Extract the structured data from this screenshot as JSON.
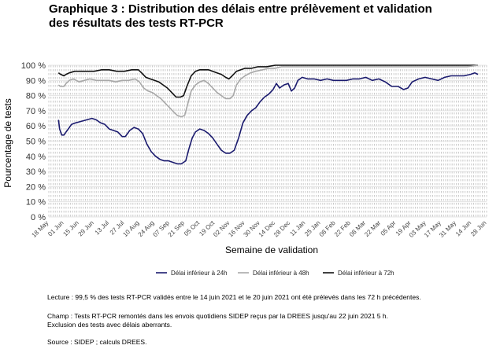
{
  "title_lines": [
    "Graphique 3 : Distribution des délais entre prélèvement et validation",
    "des résultats des tests RT-PCR"
  ],
  "chart_data": {
    "type": "line",
    "title": "Graphique 3 : Distribution des délais entre prélèvement et validation des résultats des tests RT-PCR",
    "xlabel": "Semaine de validation",
    "ylabel": "Pourcentage de tests",
    "xlim": [
      "2020-05-18",
      "2021-06-28"
    ],
    "ylim": [
      0,
      100
    ],
    "y_ticks": [
      0,
      10,
      20,
      30,
      40,
      50,
      60,
      70,
      80,
      90,
      100
    ],
    "y_tick_labels": [
      "0 %",
      "10 %",
      "20 %",
      "30 %",
      "40 %",
      "50 %",
      "60 %",
      "70 %",
      "80 %",
      "90 %",
      "100 %"
    ],
    "x_ticks": [
      "2020-05-18",
      "2020-06-01",
      "2020-06-15",
      "2020-06-29",
      "2020-07-13",
      "2020-07-27",
      "2020-08-10",
      "2020-08-24",
      "2020-09-07",
      "2020-09-21",
      "2020-10-05",
      "2020-10-19",
      "2020-11-02",
      "2020-11-16",
      "2020-11-30",
      "2020-12-14",
      "2020-12-28",
      "2021-01-11",
      "2021-01-25",
      "2021-02-08",
      "2021-02-22",
      "2021-03-08",
      "2021-03-22",
      "2021-04-05",
      "2021-04-19",
      "2021-05-03",
      "2021-05-17",
      "2021-05-31",
      "2021-06-14",
      "2021-06-28"
    ],
    "x_tick_labels": [
      "18 May",
      "01 Jun",
      "15 Jun",
      "29 Jun",
      "13 Jul",
      "27 Jul",
      "10 Aug",
      "24 Aug",
      "07 Sep",
      "21 Sep",
      "05 Oct",
      "19 Oct",
      "02 Nov",
      "16 Nov",
      "30 Nov",
      "14 Dec",
      "28 Dec",
      "11 Jan",
      "25 Jan",
      "08 Feb",
      "22 Feb",
      "08 Mar",
      "22 Mar",
      "05 Apr",
      "19 Apr",
      "03 May",
      "17 May",
      "31 May",
      "14 Jun",
      "28 Jun"
    ],
    "grid": "dashed vertical gridlines every 2 days, solid horizontal gridlines",
    "legend_position": "bottom",
    "series": [
      {
        "name": "Délai inférieur à 24h",
        "color": "#1a1a6e",
        "points": [
          [
            "2020-05-27",
            64
          ],
          [
            "2020-05-28",
            58
          ],
          [
            "2020-05-30",
            54
          ],
          [
            "2020-06-01",
            54
          ],
          [
            "2020-06-03",
            56
          ],
          [
            "2020-06-05",
            58
          ],
          [
            "2020-06-08",
            61
          ],
          [
            "2020-06-12",
            62
          ],
          [
            "2020-06-17",
            63
          ],
          [
            "2020-06-22",
            64
          ],
          [
            "2020-06-27",
            65
          ],
          [
            "2020-07-01",
            64
          ],
          [
            "2020-07-05",
            62
          ],
          [
            "2020-07-09",
            61
          ],
          [
            "2020-07-13",
            58
          ],
          [
            "2020-07-17",
            57
          ],
          [
            "2020-07-21",
            56
          ],
          [
            "2020-07-25",
            53
          ],
          [
            "2020-07-28",
            53
          ],
          [
            "2020-08-01",
            57
          ],
          [
            "2020-08-05",
            59
          ],
          [
            "2020-08-09",
            58
          ],
          [
            "2020-08-13",
            55
          ],
          [
            "2020-08-17",
            48
          ],
          [
            "2020-08-21",
            43
          ],
          [
            "2020-08-25",
            40
          ],
          [
            "2020-08-29",
            38
          ],
          [
            "2020-09-02",
            37
          ],
          [
            "2020-09-06",
            37
          ],
          [
            "2020-09-10",
            36
          ],
          [
            "2020-09-14",
            35
          ],
          [
            "2020-09-18",
            35
          ],
          [
            "2020-09-22",
            37
          ],
          [
            "2020-09-25",
            45
          ],
          [
            "2020-09-28",
            52
          ],
          [
            "2020-10-01",
            56
          ],
          [
            "2020-10-05",
            58
          ],
          [
            "2020-10-09",
            57
          ],
          [
            "2020-10-13",
            55
          ],
          [
            "2020-10-17",
            52
          ],
          [
            "2020-10-21",
            48
          ],
          [
            "2020-10-25",
            44
          ],
          [
            "2020-10-29",
            42
          ],
          [
            "2020-11-02",
            42
          ],
          [
            "2020-11-06",
            44
          ],
          [
            "2020-11-10",
            52
          ],
          [
            "2020-11-14",
            62
          ],
          [
            "2020-11-18",
            67
          ],
          [
            "2020-11-22",
            70
          ],
          [
            "2020-11-26",
            72
          ],
          [
            "2020-11-30",
            76
          ],
          [
            "2020-12-04",
            79
          ],
          [
            "2020-12-08",
            81
          ],
          [
            "2020-12-12",
            84
          ],
          [
            "2020-12-15",
            88
          ],
          [
            "2020-12-18",
            85
          ],
          [
            "2020-12-22",
            87
          ],
          [
            "2020-12-26",
            88
          ],
          [
            "2020-12-29",
            83
          ],
          [
            "2021-01-01",
            85
          ],
          [
            "2021-01-04",
            90
          ],
          [
            "2021-01-08",
            92
          ],
          [
            "2021-01-13",
            91
          ],
          [
            "2021-01-19",
            91
          ],
          [
            "2021-01-25",
            90
          ],
          [
            "2021-01-31",
            91
          ],
          [
            "2021-02-06",
            90
          ],
          [
            "2021-02-12",
            90
          ],
          [
            "2021-02-18",
            90
          ],
          [
            "2021-02-24",
            91
          ],
          [
            "2021-03-02",
            91
          ],
          [
            "2021-03-08",
            92
          ],
          [
            "2021-03-14",
            90
          ],
          [
            "2021-03-20",
            91
          ],
          [
            "2021-03-26",
            89
          ],
          [
            "2021-04-01",
            86
          ],
          [
            "2021-04-07",
            86
          ],
          [
            "2021-04-12",
            84
          ],
          [
            "2021-04-16",
            85
          ],
          [
            "2021-04-20",
            89
          ],
          [
            "2021-04-26",
            91
          ],
          [
            "2021-05-02",
            92
          ],
          [
            "2021-05-08",
            91
          ],
          [
            "2021-05-14",
            90
          ],
          [
            "2021-05-20",
            92
          ],
          [
            "2021-05-26",
            93
          ],
          [
            "2021-06-01",
            93
          ],
          [
            "2021-06-07",
            93
          ],
          [
            "2021-06-13",
            94
          ],
          [
            "2021-06-17",
            95
          ],
          [
            "2021-06-20",
            94
          ]
        ]
      },
      {
        "name": "Délai inférieur à 48h",
        "color": "#a8a8a8",
        "points": [
          [
            "2020-05-27",
            87
          ],
          [
            "2020-05-29",
            86
          ],
          [
            "2020-06-01",
            86
          ],
          [
            "2020-06-03",
            88
          ],
          [
            "2020-06-06",
            90
          ],
          [
            "2020-06-10",
            91
          ],
          [
            "2020-06-15",
            89
          ],
          [
            "2020-06-20",
            90
          ],
          [
            "2020-06-25",
            91
          ],
          [
            "2020-07-01",
            90
          ],
          [
            "2020-07-07",
            90
          ],
          [
            "2020-07-13",
            90
          ],
          [
            "2020-07-19",
            89
          ],
          [
            "2020-07-25",
            90
          ],
          [
            "2020-07-31",
            90
          ],
          [
            "2020-08-06",
            91
          ],
          [
            "2020-08-10",
            89
          ],
          [
            "2020-08-14",
            85
          ],
          [
            "2020-08-18",
            83
          ],
          [
            "2020-08-22",
            82
          ],
          [
            "2020-08-26",
            80
          ],
          [
            "2020-08-30",
            78
          ],
          [
            "2020-09-03",
            75
          ],
          [
            "2020-09-07",
            72
          ],
          [
            "2020-09-11",
            69
          ],
          [
            "2020-09-14",
            67
          ],
          [
            "2020-09-18",
            66
          ],
          [
            "2020-09-21",
            67
          ],
          [
            "2020-09-24",
            75
          ],
          [
            "2020-09-27",
            83
          ],
          [
            "2020-10-01",
            87
          ],
          [
            "2020-10-05",
            89
          ],
          [
            "2020-10-09",
            90
          ],
          [
            "2020-10-13",
            88
          ],
          [
            "2020-10-17",
            85
          ],
          [
            "2020-10-21",
            82
          ],
          [
            "2020-10-25",
            80
          ],
          [
            "2020-10-29",
            78
          ],
          [
            "2020-11-02",
            78
          ],
          [
            "2020-11-05",
            80
          ],
          [
            "2020-11-08",
            87
          ],
          [
            "2020-11-12",
            91
          ],
          [
            "2020-11-16",
            93
          ],
          [
            "2020-11-21",
            95
          ],
          [
            "2020-11-26",
            96
          ],
          [
            "2020-12-02",
            97
          ],
          [
            "2020-12-08",
            98
          ],
          [
            "2020-12-14",
            98
          ],
          [
            "2020-12-20",
            99
          ],
          [
            "2020-12-27",
            99
          ],
          [
            "2021-01-03",
            99
          ],
          [
            "2021-01-11",
            99
          ],
          [
            "2021-01-20",
            99
          ],
          [
            "2021-01-30",
            99
          ],
          [
            "2021-02-10",
            99
          ],
          [
            "2021-02-20",
            99
          ],
          [
            "2021-03-02",
            99
          ],
          [
            "2021-03-12",
            99
          ],
          [
            "2021-03-22",
            99
          ],
          [
            "2021-04-01",
            99
          ],
          [
            "2021-04-11",
            99
          ],
          [
            "2021-04-21",
            99
          ],
          [
            "2021-05-01",
            99
          ],
          [
            "2021-05-11",
            99
          ],
          [
            "2021-05-21",
            99
          ],
          [
            "2021-06-01",
            99
          ],
          [
            "2021-06-10",
            99
          ],
          [
            "2021-06-20",
            100
          ]
        ]
      },
      {
        "name": "Délai inférieur à 72h",
        "color": "#111111",
        "points": [
          [
            "2020-05-27",
            95
          ],
          [
            "2020-05-29",
            94
          ],
          [
            "2020-06-01",
            93
          ],
          [
            "2020-06-03",
            94
          ],
          [
            "2020-06-06",
            95
          ],
          [
            "2020-06-11",
            96
          ],
          [
            "2020-06-17",
            96
          ],
          [
            "2020-06-23",
            96
          ],
          [
            "2020-06-29",
            96
          ],
          [
            "2020-07-06",
            97
          ],
          [
            "2020-07-13",
            97
          ],
          [
            "2020-07-20",
            96
          ],
          [
            "2020-07-27",
            96
          ],
          [
            "2020-08-03",
            97
          ],
          [
            "2020-08-09",
            97
          ],
          [
            "2020-08-12",
            95
          ],
          [
            "2020-08-16",
            92
          ],
          [
            "2020-08-20",
            91
          ],
          [
            "2020-08-24",
            90
          ],
          [
            "2020-08-28",
            89
          ],
          [
            "2020-09-01",
            87
          ],
          [
            "2020-09-05",
            85
          ],
          [
            "2020-09-09",
            82
          ],
          [
            "2020-09-13",
            79
          ],
          [
            "2020-09-17",
            79
          ],
          [
            "2020-09-20",
            80
          ],
          [
            "2020-09-23",
            86
          ],
          [
            "2020-09-27",
            93
          ],
          [
            "2020-10-01",
            96
          ],
          [
            "2020-10-05",
            97
          ],
          [
            "2020-10-09",
            97
          ],
          [
            "2020-10-13",
            97
          ],
          [
            "2020-10-17",
            96
          ],
          [
            "2020-10-21",
            95
          ],
          [
            "2020-10-25",
            94
          ],
          [
            "2020-10-29",
            92
          ],
          [
            "2020-11-01",
            91
          ],
          [
            "2020-11-04",
            93
          ],
          [
            "2020-11-08",
            96
          ],
          [
            "2020-11-12",
            97
          ],
          [
            "2020-11-16",
            98
          ],
          [
            "2020-11-22",
            98
          ],
          [
            "2020-11-28",
            99
          ],
          [
            "2020-12-06",
            99
          ],
          [
            "2020-12-14",
            100
          ],
          [
            "2020-12-24",
            100
          ],
          [
            "2021-01-05",
            100
          ],
          [
            "2021-01-20",
            100
          ],
          [
            "2021-02-05",
            100
          ],
          [
            "2021-02-20",
            100
          ],
          [
            "2021-03-05",
            100
          ],
          [
            "2021-03-20",
            100
          ],
          [
            "2021-04-05",
            100
          ],
          [
            "2021-04-20",
            100
          ],
          [
            "2021-05-05",
            100
          ],
          [
            "2021-05-20",
            100
          ],
          [
            "2021-06-05",
            100
          ],
          [
            "2021-06-20",
            100
          ]
        ]
      }
    ]
  },
  "notes": {
    "lecture": "Lecture : 99,5 % des tests RT-PCR validés entre le 14 juin 2021 et le 20 juin 2021 ont été prélevés dans les 72 h précédentes.",
    "champ_lines": [
      "Champ : Tests RT-PCR remontés dans les envois quotidiens SIDEP reçus par la DREES jusqu'au 22 juin 2021 5 h.",
      "Exclusion des tests avec délais aberrants."
    ],
    "source": "Source : SIDEP ; calculs DREES."
  }
}
